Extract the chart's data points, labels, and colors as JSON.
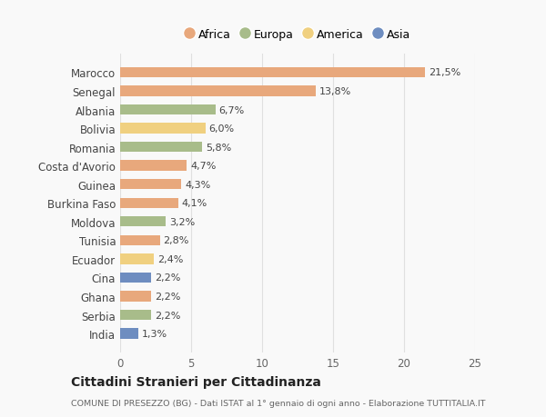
{
  "countries": [
    "Marocco",
    "Senegal",
    "Albania",
    "Bolivia",
    "Romania",
    "Costa d'Avorio",
    "Guinea",
    "Burkina Faso",
    "Moldova",
    "Tunisia",
    "Ecuador",
    "Cina",
    "Ghana",
    "Serbia",
    "India"
  ],
  "values": [
    21.5,
    13.8,
    6.7,
    6.0,
    5.8,
    4.7,
    4.3,
    4.1,
    3.2,
    2.8,
    2.4,
    2.2,
    2.2,
    2.2,
    1.3
  ],
  "labels": [
    "21,5%",
    "13,8%",
    "6,7%",
    "6,0%",
    "5,8%",
    "4,7%",
    "4,3%",
    "4,1%",
    "3,2%",
    "2,8%",
    "2,4%",
    "2,2%",
    "2,2%",
    "2,2%",
    "1,3%"
  ],
  "continents": [
    "Africa",
    "Africa",
    "Europa",
    "America",
    "Europa",
    "Africa",
    "Africa",
    "Africa",
    "Europa",
    "Africa",
    "America",
    "Asia",
    "Africa",
    "Europa",
    "Asia"
  ],
  "colors": {
    "Africa": "#E8A87C",
    "Europa": "#A8BC8A",
    "America": "#F0D080",
    "Asia": "#6E8DC0"
  },
  "legend_order": [
    "Africa",
    "Europa",
    "America",
    "Asia"
  ],
  "title": "Cittadini Stranieri per Cittadinanza",
  "subtitle": "COMUNE DI PRESEZZO (BG) - Dati ISTAT al 1° gennaio di ogni anno - Elaborazione TUTTITALIA.IT",
  "xlim": [
    0,
    25
  ],
  "xticks": [
    0,
    5,
    10,
    15,
    20,
    25
  ],
  "background_color": "#f9f9f9",
  "grid_color": "#e0e0e0"
}
